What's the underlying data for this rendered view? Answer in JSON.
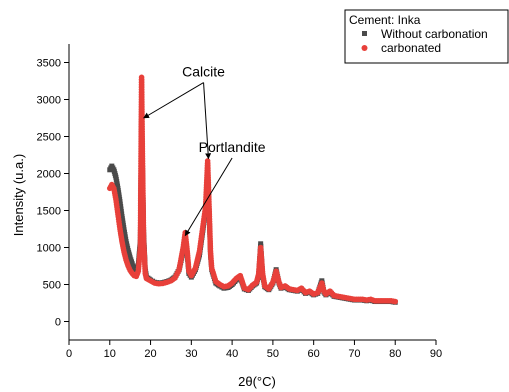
{
  "chart_data": {
    "type": "scatter",
    "xlabel": "2θ(°C)",
    "ylabel": "Intensity (u.a.)",
    "xlim": [
      0,
      90
    ],
    "ylim": [
      -250,
      3750
    ],
    "x_ticks": [
      0,
      10,
      20,
      30,
      40,
      50,
      60,
      70,
      80,
      90
    ],
    "y_ticks": [
      0,
      500,
      1000,
      1500,
      2000,
      2500,
      3000,
      3500
    ],
    "legend": {
      "title": "Cement: Inka",
      "position": "top-right"
    },
    "series": [
      {
        "name": "Without carbonation",
        "color": "#4a4a4a",
        "marker": "square",
        "x": [
          10,
          10.5,
          11,
          11.5,
          12,
          12.5,
          13,
          13.5,
          14,
          14.5,
          15,
          15.5,
          16,
          16.5,
          17,
          17.5,
          17.8,
          18,
          18.3,
          18.7,
          19,
          20,
          21,
          22,
          23,
          24,
          25,
          26,
          27,
          28,
          28.5,
          29,
          29.4,
          30,
          31,
          32,
          33,
          33.5,
          34,
          34.3,
          34.7,
          35,
          36,
          37,
          38,
          39,
          40,
          41,
          42,
          43,
          44,
          45,
          46,
          46.5,
          47,
          47.5,
          48,
          49,
          50,
          50.8,
          51.5,
          52,
          53,
          54,
          55,
          56,
          57,
          58,
          59,
          60,
          61,
          62,
          62.5,
          63,
          64,
          65,
          66,
          67,
          68,
          69,
          70,
          71,
          72,
          73,
          74,
          75,
          76,
          77,
          78,
          79,
          80
        ],
        "y": [
          2050,
          2100,
          2050,
          1950,
          1800,
          1620,
          1420,
          1240,
          1080,
          960,
          860,
          780,
          720,
          700,
          760,
          1100,
          2900,
          2200,
          1200,
          700,
          600,
          560,
          530,
          520,
          525,
          540,
          560,
          600,
          700,
          950,
          1150,
          900,
          650,
          600,
          700,
          900,
          1300,
          1500,
          2050,
          1600,
          900,
          700,
          520,
          480,
          450,
          460,
          500,
          560,
          600,
          440,
          420,
          480,
          520,
          620,
          1050,
          620,
          470,
          430,
          520,
          700,
          520,
          450,
          470,
          430,
          420,
          410,
          440,
          380,
          400,
          360,
          380,
          550,
          400,
          360,
          400,
          340,
          330,
          320,
          310,
          300,
          290,
          290,
          290,
          280,
          290,
          270,
          270,
          270,
          270,
          270,
          260
        ]
      },
      {
        "name": "carbonated",
        "color": "#e8403a",
        "marker": "circle",
        "x": [
          10,
          10.5,
          11,
          11.5,
          12,
          12.5,
          13,
          13.5,
          14,
          14.5,
          15,
          15.5,
          16,
          16.5,
          17,
          17.5,
          17.8,
          18,
          18.3,
          18.7,
          19,
          20,
          21,
          22,
          23,
          24,
          25,
          26,
          27,
          28,
          28.5,
          29,
          29.4,
          30,
          31,
          32,
          33,
          33.5,
          34,
          34.3,
          34.7,
          35,
          36,
          37,
          38,
          39,
          40,
          41,
          42,
          43,
          44,
          45,
          46,
          46.5,
          47,
          47.5,
          48,
          49,
          50,
          50.8,
          51.5,
          52,
          53,
          54,
          55,
          56,
          57,
          58,
          59,
          60,
          61,
          62,
          62.5,
          63,
          64,
          65,
          66,
          67,
          68,
          69,
          70,
          71,
          72,
          73,
          74,
          75,
          76,
          77,
          78,
          79,
          80
        ],
        "y": [
          1800,
          1850,
          1800,
          1650,
          1450,
          1250,
          1080,
          940,
          830,
          750,
          690,
          650,
          620,
          610,
          680,
          1000,
          3300,
          2300,
          1100,
          650,
          580,
          550,
          520,
          510,
          515,
          530,
          550,
          590,
          700,
          1000,
          1200,
          950,
          680,
          620,
          720,
          950,
          1350,
          1550,
          2170,
          1650,
          950,
          720,
          540,
          500,
          470,
          480,
          520,
          580,
          620,
          450,
          430,
          490,
          530,
          640,
          1000,
          640,
          480,
          440,
          530,
          680,
          530,
          460,
          480,
          440,
          430,
          420,
          450,
          390,
          410,
          370,
          390,
          520,
          410,
          370,
          410,
          350,
          340,
          330,
          320,
          310,
          300,
          300,
          300,
          290,
          300,
          280,
          280,
          280,
          280,
          280,
          270
        ]
      }
    ],
    "annotations": [
      {
        "text": "Calcite",
        "text_x": 33,
        "text_y": 3310,
        "arrows_to": [
          [
            18.3,
            2750
          ],
          [
            34.2,
            2200
          ]
        ]
      },
      {
        "text": "Portlandite",
        "text_x": 40,
        "text_y": 2290,
        "arrows_to": [
          [
            28.5,
            1160
          ]
        ]
      }
    ]
  }
}
